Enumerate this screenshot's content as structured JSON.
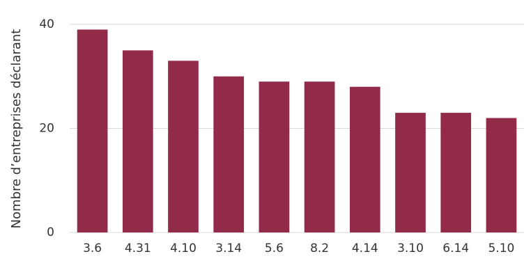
{
  "chart_data": {
    "type": "bar",
    "title": "",
    "xlabel": "",
    "ylabel": "Nombre d’entreprises déclarant",
    "categories": [
      "3.6",
      "4.31",
      "4.10",
      "3.14",
      "5.6",
      "8.2",
      "4.14",
      "3.10",
      "6.14",
      "5.10"
    ],
    "values": [
      39,
      35,
      33,
      30,
      29,
      29,
      28,
      23,
      23,
      22
    ],
    "ylim": [
      0,
      40
    ],
    "yticks": [
      0,
      20,
      40
    ],
    "grid": true,
    "legend": "none",
    "colors": {
      "bar": "#922B4A",
      "grid": "#d9d9d9",
      "text": "#333333"
    }
  }
}
